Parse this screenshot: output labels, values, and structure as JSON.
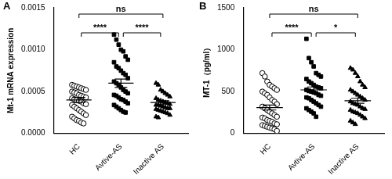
{
  "chart_data": [
    {
      "type": "scatter",
      "title": "A",
      "y_label": "Mt-1 mRNA expression",
      "color": "#000000",
      "grid": false,
      "legend": "none",
      "categories": [
        "HC",
        "Avtive-AS",
        "Inactive AS"
      ],
      "markers": [
        "open circle",
        "square",
        "triangle"
      ],
      "points": [
        [
          0.00058,
          0.00057,
          0.00056,
          0.00055,
          0.00054,
          0.00053,
          0.00052,
          0.0005,
          0.00049,
          0.00048,
          0.00046,
          0.00045,
          0.00044,
          0.00043,
          0.00042,
          0.00041,
          0.0004,
          0.00039,
          0.00038,
          0.00036,
          0.00035,
          0.00034,
          0.00032,
          0.0003,
          0.00028,
          0.00026,
          0.00024,
          0.00022,
          0.0002,
          0.00018,
          0.00016,
          0.00015,
          0.00013,
          0.00012
        ],
        [
          0.00118,
          0.00112,
          0.00106,
          0.001,
          0.00098,
          0.00092,
          0.00088,
          0.00085,
          0.0008,
          0.00078,
          0.00075,
          0.00072,
          0.0007,
          0.00066,
          0.00062,
          0.0006,
          0.00058,
          0.00055,
          0.00052,
          0.0005,
          0.00048,
          0.00046,
          0.00045,
          0.00043,
          0.00041,
          0.0004,
          0.00038,
          0.00036,
          0.00034,
          0.00032,
          0.0003,
          0.00028,
          0.00026,
          0.00025
        ],
        [
          0.0006,
          0.00058,
          0.00052,
          0.0005,
          0.00048,
          0.00046,
          0.00044,
          0.00042,
          0.0004,
          0.00039,
          0.00038,
          0.00037,
          0.00036,
          0.00035,
          0.00034,
          0.00034,
          0.00033,
          0.00032,
          0.00031,
          0.0003,
          0.0003,
          0.00029,
          0.00028,
          0.00027,
          0.00026,
          0.00025,
          0.00024,
          0.00022,
          0.0002,
          0.00019
        ]
      ],
      "means": [
        0.0004,
        0.0006,
        0.00037
      ],
      "sems": [
        3e-05,
        5e-05,
        2e-05
      ],
      "ylim": [
        0,
        0.0015
      ],
      "yticks": [
        {
          "value": 0,
          "label": "0.0000"
        },
        {
          "value": 0.0005,
          "label": "0.0005"
        },
        {
          "value": 0.001,
          "label": "0.0010"
        },
        {
          "value": 0.0015,
          "label": "0.0015"
        }
      ],
      "annotations": [
        {
          "from": 0,
          "to": 1,
          "label": "****"
        },
        {
          "from": 1,
          "to": 2,
          "label": "****"
        },
        {
          "from": 0,
          "to": 2,
          "label": "ns"
        }
      ]
    },
    {
      "type": "scatter",
      "title": "B",
      "y_label": "MT-1（pg/ml）",
      "color": "#000000",
      "grid": false,
      "legend": "none",
      "categories": [
        "HC",
        "Avtive-AS",
        "Inactive AS"
      ],
      "markers": [
        "open circle",
        "square",
        "triangle"
      ],
      "points": [
        [
          720,
          680,
          620,
          580,
          560,
          540,
          520,
          500,
          480,
          460,
          430,
          400,
          380,
          350,
          320,
          300,
          280,
          260,
          240,
          220,
          200,
          190,
          180,
          160,
          150,
          140,
          120,
          110,
          100,
          90,
          80,
          70,
          60,
          50,
          30
        ],
        [
          1130,
          900,
          850,
          800,
          720,
          700,
          680,
          650,
          620,
          600,
          580,
          560,
          550,
          540,
          520,
          510,
          500,
          490,
          480,
          460,
          450,
          430,
          420,
          400,
          380,
          360,
          340,
          320,
          300,
          280,
          260,
          240,
          200
        ],
        [
          780,
          760,
          720,
          680,
          620,
          580,
          550,
          520,
          500,
          480,
          460,
          440,
          420,
          400,
          380,
          360,
          350,
          340,
          320,
          300,
          290,
          280,
          260,
          250,
          240,
          220,
          200,
          180,
          150,
          130,
          110
        ]
      ],
      "means": [
        310,
        520,
        390
      ],
      "sems": [
        30,
        35,
        30
      ],
      "ylim": [
        0,
        1500
      ],
      "yticks": [
        0,
        500,
        1000,
        1500
      ],
      "annotations": [
        {
          "from": 0,
          "to": 1,
          "label": "****"
        },
        {
          "from": 1,
          "to": 2,
          "label": "*"
        },
        {
          "from": 0,
          "to": 2,
          "label": "ns"
        }
      ]
    }
  ]
}
